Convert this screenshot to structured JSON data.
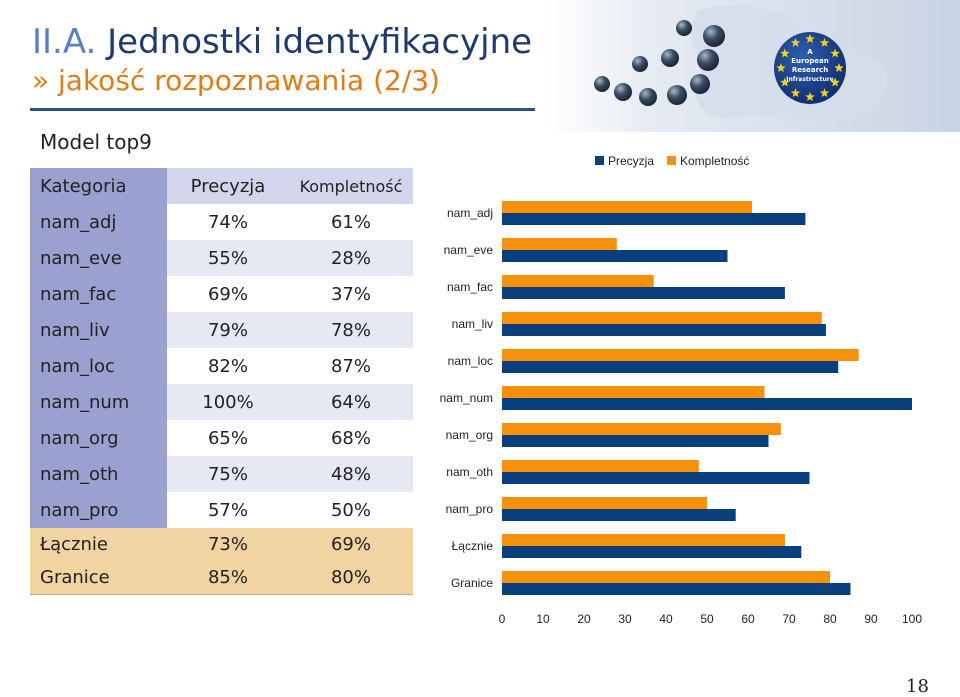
{
  "slide": {
    "title_prefix": "II.A.",
    "title_main": "Jednostki identyfikacyjne",
    "subtitle": "» jakość rozpoznawania (2/3)",
    "model_label": "Model top9",
    "logo_text": [
      "A",
      "European",
      "Research",
      "Infrastructure"
    ],
    "page_number": "18"
  },
  "table": {
    "headers": [
      "Kategoria",
      "Precyzja",
      "Kompletność"
    ],
    "rows": [
      {
        "cat": "nam_adj",
        "prec": "74%",
        "komp": "61%"
      },
      {
        "cat": "nam_eve",
        "prec": "55%",
        "komp": "28%"
      },
      {
        "cat": "nam_fac",
        "prec": "69%",
        "komp": "37%"
      },
      {
        "cat": "nam_liv",
        "prec": "79%",
        "komp": "78%"
      },
      {
        "cat": "nam_loc",
        "prec": "82%",
        "komp": "87%"
      },
      {
        "cat": "nam_num",
        "prec": "100%",
        "komp": "64%"
      },
      {
        "cat": "nam_org",
        "prec": "65%",
        "komp": "68%"
      },
      {
        "cat": "nam_oth",
        "prec": "75%",
        "komp": "48%"
      },
      {
        "cat": "nam_pro",
        "prec": "57%",
        "komp": "50%"
      }
    ],
    "summary": [
      {
        "cat": "Łącznie",
        "prec": "73%",
        "komp": "69%"
      },
      {
        "cat": "Granice",
        "prec": "85%",
        "komp": "80%"
      }
    ]
  },
  "colors": {
    "precyzja": "#0a3f7d",
    "kompletnosc": "#f7900b"
  },
  "chart_data": {
    "type": "bar",
    "orientation": "horizontal",
    "categories": [
      "nam_adj",
      "nam_eve",
      "nam_fac",
      "nam_liv",
      "nam_loc",
      "nam_num",
      "nam_org",
      "nam_oth",
      "nam_pro",
      "Łącznie",
      "Granice"
    ],
    "series": [
      {
        "name": "Precyzja",
        "values": [
          74,
          55,
          69,
          79,
          82,
          100,
          65,
          75,
          57,
          73,
          85
        ]
      },
      {
        "name": "Kompletność",
        "values": [
          61,
          28,
          37,
          78,
          87,
          64,
          68,
          48,
          50,
          69,
          80
        ]
      }
    ],
    "xlim": [
      0,
      100
    ],
    "xticks": [
      "0",
      "10",
      "20",
      "30",
      "40",
      "50",
      "60",
      "70",
      "80",
      "90",
      "100"
    ],
    "legend": "top",
    "grid": false
  }
}
